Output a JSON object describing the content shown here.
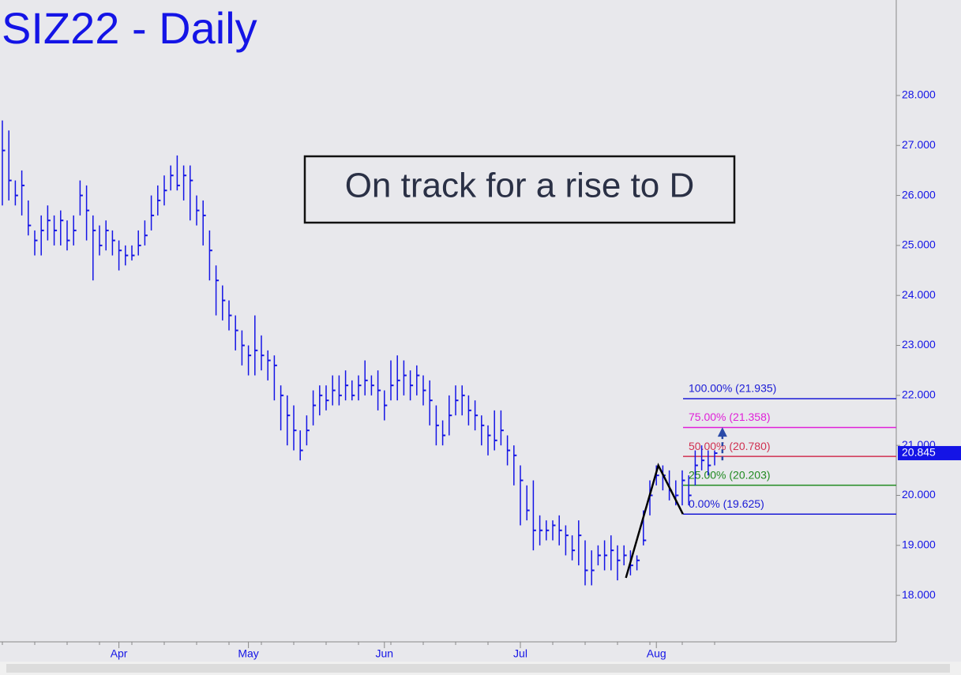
{
  "chart_data": {
    "type": "ohlc",
    "title": "SIZ22 - Daily",
    "annotation": "On track for a rise to D",
    "categories": [
      null,
      null,
      null,
      null,
      null,
      null,
      null,
      null,
      null,
      null,
      null,
      null,
      null,
      null,
      null,
      null,
      null,
      null,
      "Apr",
      null,
      null,
      null,
      null,
      null,
      null,
      null,
      null,
      null,
      null,
      null,
      null,
      null,
      null,
      null,
      null,
      null,
      null,
      null,
      "May",
      null,
      null,
      null,
      null,
      null,
      null,
      null,
      null,
      null,
      null,
      null,
      null,
      null,
      null,
      null,
      null,
      null,
      null,
      null,
      null,
      "Jun",
      null,
      null,
      null,
      null,
      null,
      null,
      null,
      null,
      null,
      null,
      null,
      null,
      null,
      null,
      null,
      null,
      null,
      null,
      null,
      null,
      "Jul",
      null,
      null,
      null,
      null,
      null,
      null,
      null,
      null,
      null,
      null,
      null,
      null,
      null,
      null,
      null,
      null,
      null,
      null,
      null,
      null,
      "Aug",
      null,
      null,
      null,
      null,
      null,
      null,
      null,
      null,
      null
    ],
    "high": [
      27.5,
      27.3,
      26.3,
      26.5,
      25.9,
      25.3,
      25.6,
      25.8,
      25.6,
      25.7,
      25.5,
      25.6,
      26.3,
      26.2,
      25.6,
      25.4,
      25.5,
      25.3,
      25.1,
      25.0,
      25.0,
      25.3,
      25.5,
      26.0,
      26.2,
      26.4,
      26.6,
      26.8,
      26.6,
      26.6,
      26.0,
      25.9,
      25.3,
      24.6,
      24.2,
      23.9,
      23.6,
      23.3,
      23.0,
      23.6,
      23.2,
      22.9,
      22.8,
      22.2,
      22.0,
      21.8,
      21.3,
      21.6,
      22.1,
      22.2,
      22.2,
      22.4,
      22.4,
      22.5,
      22.3,
      22.4,
      22.7,
      22.4,
      22.5,
      22.1,
      22.7,
      22.8,
      22.7,
      22.5,
      22.6,
      22.4,
      22.3,
      21.8,
      21.5,
      22.0,
      22.2,
      22.2,
      22.0,
      21.9,
      21.6,
      21.4,
      21.7,
      21.7,
      21.2,
      21.0,
      20.6,
      20.2,
      20.3,
      19.6,
      19.5,
      19.5,
      19.6,
      19.4,
      19.2,
      19.5,
      19.1,
      18.9,
      19.0,
      19.1,
      19.2,
      19.0,
      19.0,
      18.9,
      18.8,
      19.7,
      20.3,
      20.6,
      20.6,
      20.5,
      20.3,
      20.5,
      20.4,
      20.9,
      21.0,
      20.9,
      20.9
    ],
    "low": [
      25.8,
      25.9,
      25.8,
      25.6,
      25.2,
      24.8,
      24.8,
      25.1,
      25.0,
      25.0,
      24.9,
      25.0,
      25.6,
      25.1,
      24.3,
      24.8,
      24.9,
      24.8,
      24.5,
      24.6,
      24.7,
      24.8,
      25.0,
      25.3,
      25.6,
      25.8,
      26.1,
      26.1,
      25.9,
      25.5,
      25.4,
      25.0,
      24.3,
      23.6,
      23.5,
      23.3,
      22.9,
      22.6,
      22.4,
      22.4,
      22.5,
      22.3,
      21.9,
      21.3,
      21.0,
      20.9,
      20.7,
      21.0,
      21.4,
      21.6,
      21.7,
      21.8,
      21.8,
      21.9,
      21.9,
      21.9,
      22.0,
      22.0,
      21.7,
      21.5,
      21.9,
      21.9,
      22.0,
      21.9,
      22.0,
      21.8,
      21.4,
      21.0,
      21.0,
      21.2,
      21.6,
      21.6,
      21.4,
      21.3,
      21.0,
      20.8,
      20.9,
      21.0,
      20.6,
      20.2,
      19.4,
      19.5,
      18.9,
      19.0,
      19.1,
      19.1,
      19.0,
      18.8,
      18.7,
      18.6,
      18.2,
      18.2,
      18.6,
      18.5,
      18.5,
      18.3,
      18.6,
      18.4,
      18.5,
      19.0,
      19.6,
      20.2,
      20.1,
      19.9,
      19.8,
      19.8,
      19.8,
      20.2,
      20.5,
      20.4,
      20.6
    ],
    "close": [
      26.9,
      26.3,
      26.0,
      26.2,
      25.4,
      25.1,
      25.3,
      25.5,
      25.3,
      25.5,
      25.1,
      25.3,
      26.0,
      25.7,
      25.3,
      25.0,
      25.3,
      25.1,
      24.9,
      24.8,
      24.8,
      25.0,
      25.2,
      25.6,
      25.9,
      26.1,
      26.4,
      26.2,
      26.4,
      26.3,
      25.7,
      25.6,
      24.9,
      24.3,
      23.9,
      23.6,
      23.3,
      23.0,
      22.8,
      22.9,
      22.8,
      22.7,
      22.6,
      22.0,
      21.6,
      21.3,
      20.9,
      21.3,
      21.8,
      22.0,
      21.9,
      22.1,
      22.0,
      22.2,
      22.0,
      22.2,
      22.3,
      22.2,
      22.1,
      21.8,
      22.2,
      22.3,
      22.4,
      22.2,
      22.4,
      22.1,
      21.9,
      21.4,
      21.2,
      21.6,
      21.9,
      22.0,
      21.7,
      21.6,
      21.4,
      21.2,
      21.1,
      21.3,
      20.9,
      20.8,
      20.3,
      19.7,
      19.3,
      19.3,
      19.3,
      19.4,
      19.3,
      19.2,
      18.9,
      19.2,
      18.5,
      18.5,
      18.8,
      18.8,
      18.9,
      18.7,
      18.8,
      18.6,
      18.7,
      19.1,
      20.0,
      20.4,
      20.4,
      20.1,
      20.0,
      20.3,
      20.0,
      20.6,
      20.7,
      20.6,
      20.845
    ],
    "color": "#1414e6",
    "ylim": [
      17.07,
      29.91
    ],
    "yticks": [
      {
        "value": 18,
        "label": "18.000"
      },
      {
        "value": 19,
        "label": "19.000"
      },
      {
        "value": 20,
        "label": "20.000"
      },
      {
        "value": 21,
        "label": "21.000"
      },
      {
        "value": 22,
        "label": "22.000"
      },
      {
        "value": 23,
        "label": "23.000"
      },
      {
        "value": 24,
        "label": "24.000"
      },
      {
        "value": 25,
        "label": "25.000"
      },
      {
        "value": 26,
        "label": "26.000"
      },
      {
        "value": 27,
        "label": "27.000"
      },
      {
        "value": 28,
        "label": "28.000"
      }
    ],
    "last_price": 20.845,
    "levels": [
      {
        "label": "100.00% (21.935)",
        "value": 21.935,
        "color": "#1a1ad6"
      },
      {
        "label": "75.00% (21.358)",
        "value": 21.358,
        "color": "#e020d8"
      },
      {
        "label": "50.00% (20.780)",
        "value": 20.78,
        "color": "#d03050"
      },
      {
        "label": "25.00% (20.203)",
        "value": 20.203,
        "color": "#208a20"
      },
      {
        "label": "0.00% (19.625)",
        "value": 19.625,
        "color": "#1a1ad6"
      }
    ],
    "pattern": {
      "x": [
        96.3,
        101.3,
        105.1
      ],
      "y": [
        18.35,
        20.6,
        19.625
      ],
      "color": "#000000"
    },
    "arrow": {
      "x": 111.2,
      "from": 20.7,
      "to": 21.3,
      "color": "#2a4aa8"
    }
  }
}
